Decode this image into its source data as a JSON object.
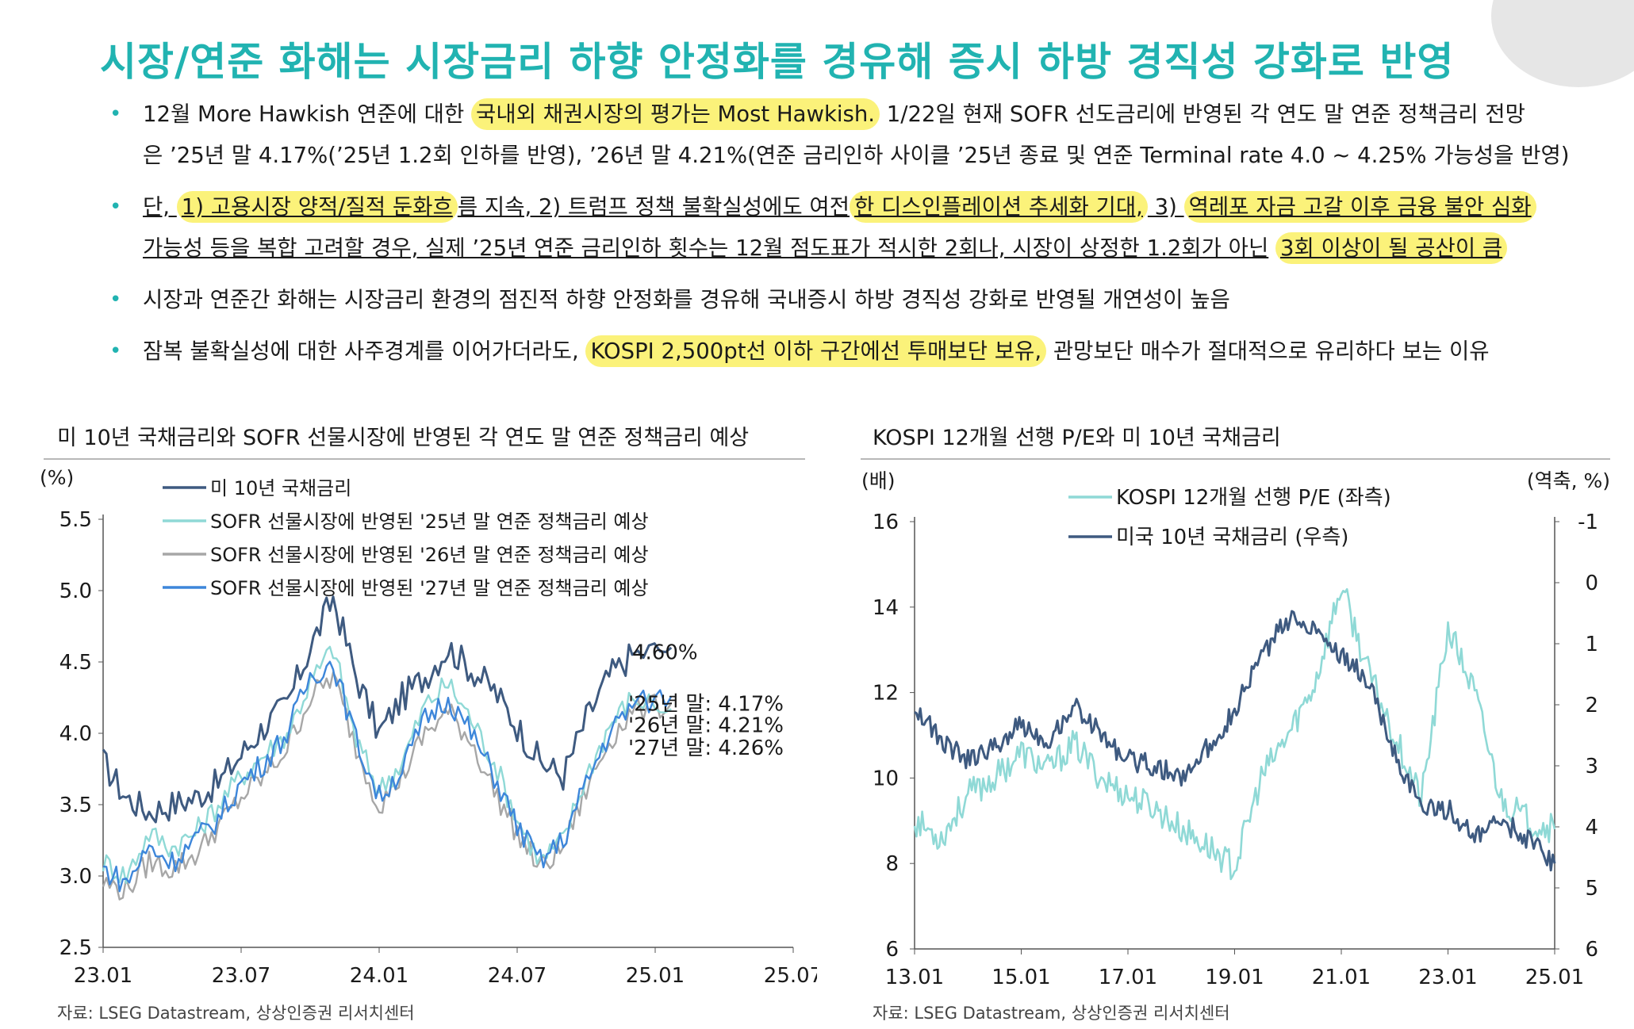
{
  "title": "시장/연준 화해는 시장금리 하향 안정화를 경유해 증시 하방 경직성 강화로 반영",
  "bullets": [
    {
      "line1_a": "12월 More Hawkish 연준에 대한 ",
      "line1_hl": "국내외 채권시장의 평가는 Most Hawkish.",
      "line1_b": " 1/22일 현재 SOFR 선도금리에 반영된 각 연도 말 연준 정책금리 전망",
      "line2": "은 ’25년 말 4.17%(’25년 1.2회 인하를 반영), ’26년 말 4.21%(연준 금리인하 사이클 ’25년 종료 및 연준 Terminal rate 4.0 ~ 4.25% 가능성을 반영)"
    },
    {
      "line1_a": "단, ",
      "line1_hl1": "1) 고용시장 양적/질적 둔화흐",
      "line1_b": "름 지속, 2) 트럼프 정책 불확실성에도 여전",
      "line1_hl2": "한 디스인플레이션 추세화 기대,",
      "line1_c": " 3) ",
      "line1_hl3": "역레포 자금 고갈 이후 금융 불안 심화",
      "line2_a": "가능성 등을 복합 고려할 경우, 실제 ’25년 연준 금리인하 횟수는 12월 점도표가 적시한 2회나, 시장이 상정한 1.2회가 아닌",
      "line2_hl": "3회 이상이 될 공산이 큼"
    },
    {
      "line1": "시장과 연준간 화해는 시장금리 환경의 점진적 하향 안정화를 경유해 국내증시 하방 경직성 강화로 반영될 개연성이 높음"
    },
    {
      "line1_a": "잠복 불확실성에 대한 사주경계를 이어가더라도, ",
      "line1_hl": "KOSPI 2,500pt선 이하 구간에선 투매보단 보유,",
      "line1_b": " 관망보단 매수가 절대적으로 유리하다 보는 이유"
    }
  ],
  "colors": {
    "accent": "#21b3b1",
    "highlight": "#fbf27a",
    "dark_blue": "#3e5a80",
    "light_teal": "#8fd9d6",
    "gray": "#a7a7a7",
    "mid_blue": "#3d86da"
  },
  "chart_left": {
    "title": "미 10년 국채금리와 SOFR 선물시장에 반영된 각 연도 말 연준 정책금리 예상",
    "source": "자료: LSEG Datastream, 상상인증권 리서치센터",
    "chart_data": {
      "type": "line",
      "ylabel": "(%)",
      "ylim": [
        2.5,
        5.5
      ],
      "yticks": [
        "2.5",
        "3.0",
        "3.5",
        "4.0",
        "4.5",
        "5.0",
        "5.5"
      ],
      "xticks": [
        "23.01",
        "23.07",
        "24.01",
        "24.07",
        "25.01",
        "25.07"
      ],
      "xlim": [
        0,
        30
      ],
      "x": [
        0,
        1,
        2,
        3,
        4,
        5,
        6,
        7,
        8,
        9,
        10,
        11,
        12,
        13,
        14,
        15,
        16,
        17,
        18,
        19,
        20,
        21,
        22,
        23,
        24.7
      ],
      "series": [
        {
          "name": "미 10년 국채금리",
          "color": "#3e5a80",
          "values": [
            3.8,
            3.55,
            3.45,
            3.5,
            3.55,
            3.65,
            3.85,
            4.05,
            4.2,
            4.6,
            4.95,
            4.4,
            4.0,
            4.25,
            4.4,
            4.6,
            4.45,
            4.3,
            4.05,
            3.8,
            3.7,
            4.1,
            4.4,
            4.55,
            4.6
          ]
        },
        {
          "name": "SOFR 선물시장에 반영된 '25년 말 연준 정책금리 예상",
          "color": "#8fd9d6",
          "values": [
            3.1,
            3.0,
            3.3,
            3.2,
            3.3,
            3.5,
            3.7,
            3.85,
            4.0,
            4.35,
            4.6,
            3.95,
            3.6,
            3.8,
            4.2,
            4.35,
            4.1,
            3.8,
            3.4,
            3.1,
            3.25,
            3.7,
            4.05,
            4.25,
            4.17
          ]
        },
        {
          "name": "SOFR 선물시장에 반영된 '26년 말 연준 정책금리 예상",
          "color": "#a7a7a7",
          "values": [
            2.95,
            2.9,
            3.1,
            3.05,
            3.15,
            3.35,
            3.55,
            3.7,
            3.9,
            4.25,
            4.4,
            3.9,
            3.5,
            3.7,
            4.0,
            4.15,
            3.95,
            3.6,
            3.3,
            3.05,
            3.2,
            3.6,
            3.95,
            4.15,
            4.21
          ]
        },
        {
          "name": "SOFR 선물시장에 반영된 '27년 말 연준 정책금리 예상",
          "color": "#3d86da",
          "values": [
            3.05,
            2.95,
            3.2,
            3.1,
            3.25,
            3.4,
            3.65,
            3.8,
            4.0,
            4.4,
            4.5,
            3.95,
            3.55,
            3.75,
            4.1,
            4.25,
            4.0,
            3.7,
            3.35,
            3.1,
            3.25,
            3.65,
            4.0,
            4.2,
            4.26
          ]
        }
      ],
      "annotations": [
        "4.60%",
        "'25년 말: 4.17%",
        "'26년 말: 4.21%",
        "'27년 말: 4.26%"
      ]
    }
  },
  "chart_right": {
    "title": "KOSPI 12개월 선행 P/E와 미 10년 국채금리",
    "source": "자료: LSEG Datastream, 상상인증권 리서치센터",
    "chart_data": {
      "type": "line",
      "ylabel_left": "(배)",
      "ylabel_right": "(역축, %)",
      "ylim_left": [
        6,
        16
      ],
      "ylim_right_inverted": [
        -1,
        6
      ],
      "yticks_left": [
        "6",
        "8",
        "10",
        "12",
        "14",
        "16"
      ],
      "yticks_right": [
        "-1",
        "0",
        "1",
        "2",
        "3",
        "4",
        "5",
        "6"
      ],
      "xticks": [
        "13.01",
        "15.01",
        "17.01",
        "19.01",
        "21.01",
        "23.01",
        "25.01"
      ],
      "xlim": [
        0,
        12
      ],
      "x": [
        0,
        0.5,
        1,
        1.5,
        2,
        2.5,
        3,
        3.5,
        4,
        4.5,
        5,
        5.5,
        6,
        6.5,
        7,
        7.5,
        8,
        8.5,
        9,
        9.5,
        10,
        10.5,
        11,
        11.5,
        12
      ],
      "series": [
        {
          "name": "KOSPI 12개월 선행 P/E (좌측)",
          "axis": "left",
          "color": "#8fd9d6",
          "values": [
            9.0,
            8.6,
            9.6,
            10.0,
            10.6,
            10.2,
            10.8,
            10.0,
            9.6,
            9.3,
            8.8,
            8.4,
            7.9,
            10.0,
            11.0,
            12.2,
            14.5,
            12.5,
            11.0,
            9.5,
            13.5,
            12.0,
            9.5,
            9.0,
            8.8
          ]
        },
        {
          "name": "미국 10년 국채금리 (우측)",
          "axis": "right",
          "color": "#3e5a80",
          "values": [
            2.0,
            2.6,
            2.9,
            2.7,
            2.3,
            2.6,
            2.0,
            2.5,
            2.9,
            3.0,
            3.2,
            2.7,
            2.1,
            1.2,
            0.6,
            0.7,
            1.2,
            1.6,
            2.8,
            3.7,
            3.7,
            4.2,
            3.9,
            4.2,
            4.6
          ]
        }
      ]
    }
  }
}
